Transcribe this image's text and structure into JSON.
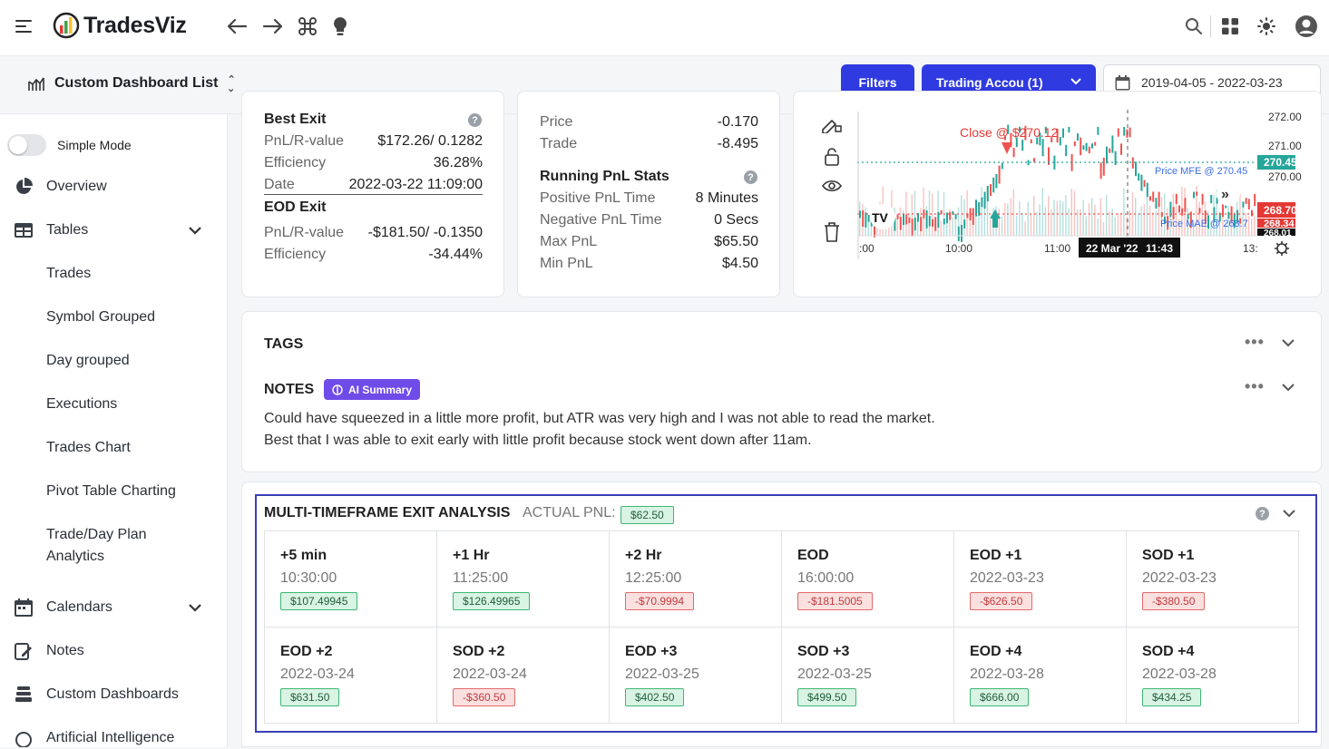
{
  "topbar": {
    "logo_text": "TradesViz",
    "icons": [
      "menu-icon",
      "back-arrow-icon",
      "forward-arrow-icon",
      "command-icon",
      "lightbulb-icon",
      "search-icon",
      "apps-grid-icon",
      "theme-sun-icon",
      "user-avatar-icon"
    ]
  },
  "subbar": {
    "dashboard_list_label": "Custom Dashboard List",
    "filters_label": "Filters",
    "account_label": "Trading Accou (1)",
    "date_range": "2019-04-05 - 2022-03-23"
  },
  "sidebar": {
    "simple_mode_label": "Simple Mode",
    "items": {
      "overview": "Overview",
      "tables": "Tables",
      "trades": "Trades",
      "symbol_grouped": "Symbol Grouped",
      "day_grouped": "Day grouped",
      "executions": "Executions",
      "trades_chart": "Trades Chart",
      "pivot": "Pivot Table Charting",
      "plan_line1": "Trade/Day Plan",
      "plan_line2": "Analytics",
      "calendars": "Calendars",
      "notes": "Notes",
      "custom_dashboards": "Custom Dashboards",
      "ai": "Artificial Intelligence"
    }
  },
  "exit_card": {
    "best_exit_title": "Best Exit",
    "best_pnl_label": "PnL/R-value",
    "best_pnl_value": "$172.26/ 0.1282",
    "best_eff_label": "Efficiency",
    "best_eff_value": "36.28%",
    "best_date_label": "Date",
    "best_date_value": "2022-03-22 11:09:00",
    "eod_exit_title": "EOD Exit",
    "eod_pnl_label": "PnL/R-value",
    "eod_pnl_value": "-$181.50/ -0.1350",
    "eod_eff_label": "Efficiency",
    "eod_eff_value": "-34.44%"
  },
  "stats_card": {
    "price_label": "Price",
    "price_value": "-0.170",
    "trade_label": "Trade",
    "trade_value": "-8.495",
    "running_title": "Running PnL Stats",
    "pos_time_label": "Positive PnL Time",
    "pos_time_value": "8 Minutes",
    "neg_time_label": "Negative PnL Time",
    "neg_time_value": "0 Secs",
    "max_label": "Max PnL",
    "max_value": "$65.50",
    "min_label": "Min PnL",
    "min_value": "$4.50"
  },
  "chart_panel": {
    "close_label": "Close @ $270.12",
    "mfe_label": "Price MFE @ 270.45",
    "mae_label": "Price MAE @ 268.7",
    "price_ticks": [
      "272.00",
      "271.00",
      "270.00",
      "268.01"
    ],
    "price_tags": {
      "mfe": "270.45",
      "mae": "268.70",
      "other": "268.34"
    },
    "time_ticks": [
      ":00",
      "10:00",
      "11:00",
      "13:"
    ],
    "crosshair_date": "22 Mar '22",
    "crosshair_time": "11:43",
    "tv_logo": "TV",
    "colors": {
      "up": "#26a69a",
      "down": "#ef5350",
      "mfe": "#26a69a",
      "mae": "#ef5350"
    }
  },
  "tags_section": {
    "title": "TAGS"
  },
  "notes_section": {
    "title": "NOTES",
    "ai_summary_label": "AI Summary",
    "line1": "Could have squeezed in a little more profit, but ATR was very high and I was not able to read the market.",
    "line2": "Best that I was able to exit early with little profit because stock went down after 11am."
  },
  "mtf": {
    "title": "MULTI-TIMEFRAME EXIT ANALYSIS",
    "actual_label": "ACTUAL PNL:",
    "actual_value": "$62.50",
    "cells": [
      {
        "title": "+5 min",
        "sub": "10:30:00",
        "value": "$107.49945",
        "tone": "g"
      },
      {
        "title": "+1 Hr",
        "sub": "11:25:00",
        "value": "$126.49965",
        "tone": "g"
      },
      {
        "title": "+2 Hr",
        "sub": "12:25:00",
        "value": "-$70.9994",
        "tone": "r"
      },
      {
        "title": "EOD",
        "sub": "16:00:00",
        "value": "-$181.5005",
        "tone": "r"
      },
      {
        "title": "EOD +1",
        "sub": "2022-03-23",
        "value": "-$626.50",
        "tone": "r"
      },
      {
        "title": "SOD +1",
        "sub": "2022-03-23",
        "value": "-$380.50",
        "tone": "r"
      },
      {
        "title": "EOD +2",
        "sub": "2022-03-24",
        "value": "$631.50",
        "tone": "g"
      },
      {
        "title": "SOD +2",
        "sub": "2022-03-24",
        "value": "-$360.50",
        "tone": "r"
      },
      {
        "title": "EOD +3",
        "sub": "2022-03-25",
        "value": "$402.50",
        "tone": "g"
      },
      {
        "title": "SOD +3",
        "sub": "2022-03-25",
        "value": "$499.50",
        "tone": "g"
      },
      {
        "title": "EOD +4",
        "sub": "2022-03-28",
        "value": "$666.00",
        "tone": "g"
      },
      {
        "title": "SOD +4",
        "sub": "2022-03-28",
        "value": "$434.25",
        "tone": "g"
      }
    ]
  }
}
